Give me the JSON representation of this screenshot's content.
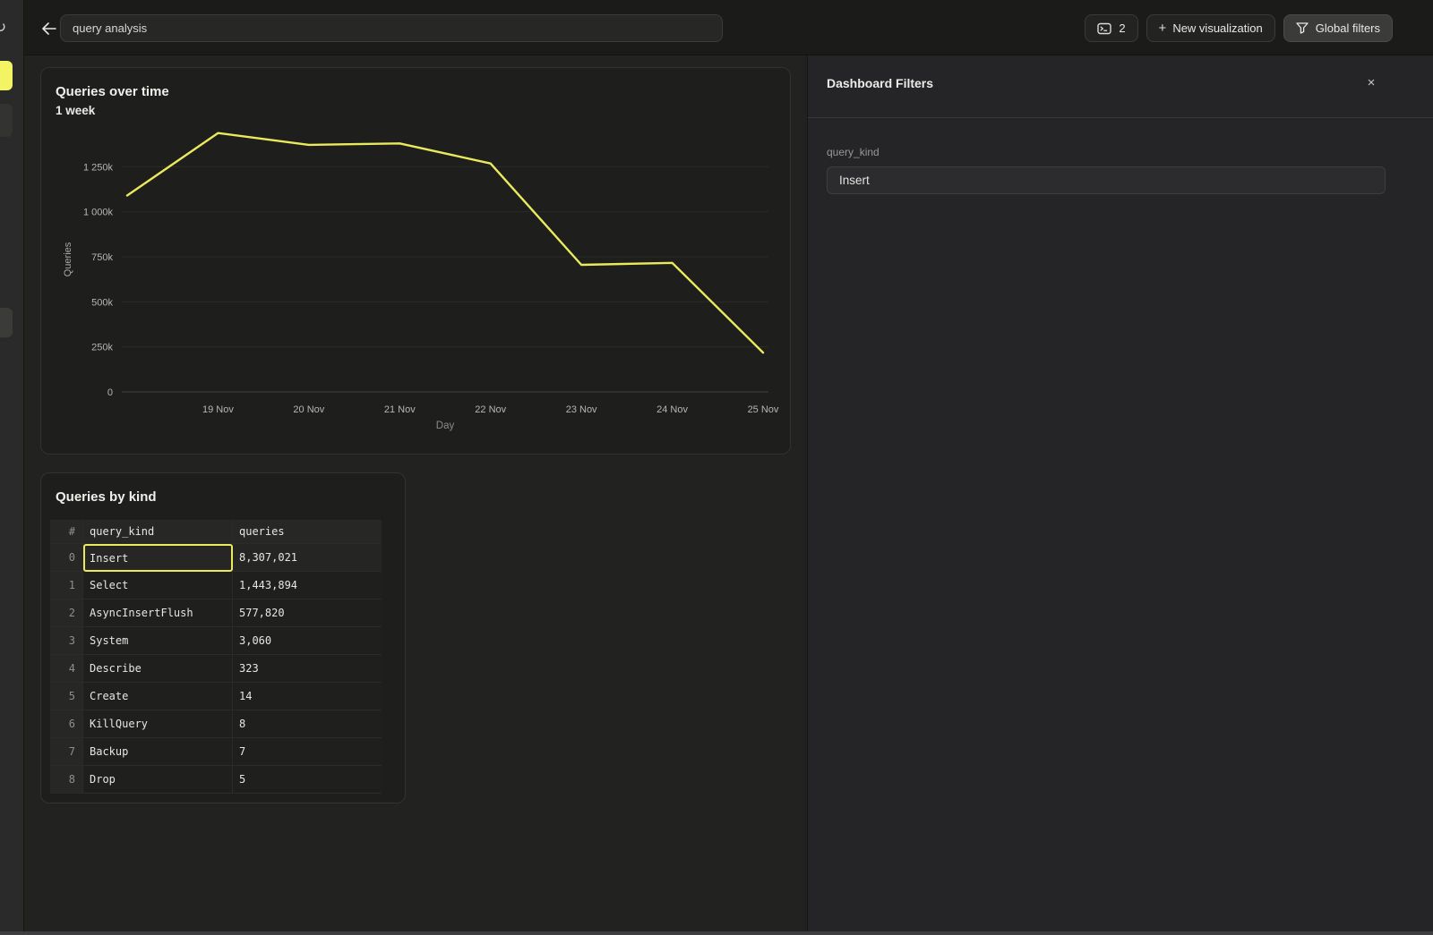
{
  "colors": {
    "accent_yellow": "#e9ea5c",
    "rail_yellow": "#f3f464"
  },
  "topbar": {
    "title_input_value": "query analysis",
    "console_button_count": "2",
    "new_visualization_plus": "+",
    "new_visualization_label": "New visualization",
    "global_filters_label": "Global filters"
  },
  "filters_panel": {
    "title": "Dashboard Filters",
    "close_glyph": "×",
    "fields": [
      {
        "label": "query_kind",
        "value": "Insert"
      }
    ]
  },
  "chart_data": {
    "type": "line",
    "title": "Queries over time",
    "subtitle": "1 week",
    "xlabel": "Day",
    "ylabel": "Queries",
    "x_tick_labels": [
      "19 Nov",
      "20 Nov",
      "21 Nov",
      "22 Nov",
      "23 Nov",
      "24 Nov",
      "25 Nov"
    ],
    "y_ticks": [
      0,
      250000,
      500000,
      750000,
      1000000,
      1250000
    ],
    "y_tick_labels": [
      "0",
      "250k",
      "500k",
      "750k",
      "1 000k",
      "1 250k"
    ],
    "ylim": [
      0,
      1475000
    ],
    "grid": true,
    "legend": false,
    "series": [
      {
        "name": "Queries",
        "color": "#e9ea5c",
        "x": [
          "18 Nov",
          "19 Nov",
          "20 Nov",
          "21 Nov",
          "22 Nov",
          "23 Nov",
          "24 Nov",
          "25 Nov"
        ],
        "values": [
          1090000,
          1437000,
          1371000,
          1379000,
          1268000,
          705000,
          716000,
          218000
        ]
      }
    ]
  },
  "table_card": {
    "title": "Queries by kind",
    "columns": [
      "#",
      "query_kind",
      "queries"
    ],
    "rows": [
      {
        "idx": "0",
        "kind": "Insert",
        "queries": "8,307,021",
        "selected": true
      },
      {
        "idx": "1",
        "kind": "Select",
        "queries": "1,443,894",
        "selected": false
      },
      {
        "idx": "2",
        "kind": "AsyncInsertFlush",
        "queries": "577,820",
        "selected": false
      },
      {
        "idx": "3",
        "kind": "System",
        "queries": "3,060",
        "selected": false
      },
      {
        "idx": "4",
        "kind": "Describe",
        "queries": "323",
        "selected": false
      },
      {
        "idx": "5",
        "kind": "Create",
        "queries": "14",
        "selected": false
      },
      {
        "idx": "6",
        "kind": "KillQuery",
        "queries": "8",
        "selected": false
      },
      {
        "idx": "7",
        "kind": "Backup",
        "queries": "7",
        "selected": false
      },
      {
        "idx": "8",
        "kind": "Drop",
        "queries": "5",
        "selected": false
      }
    ]
  }
}
